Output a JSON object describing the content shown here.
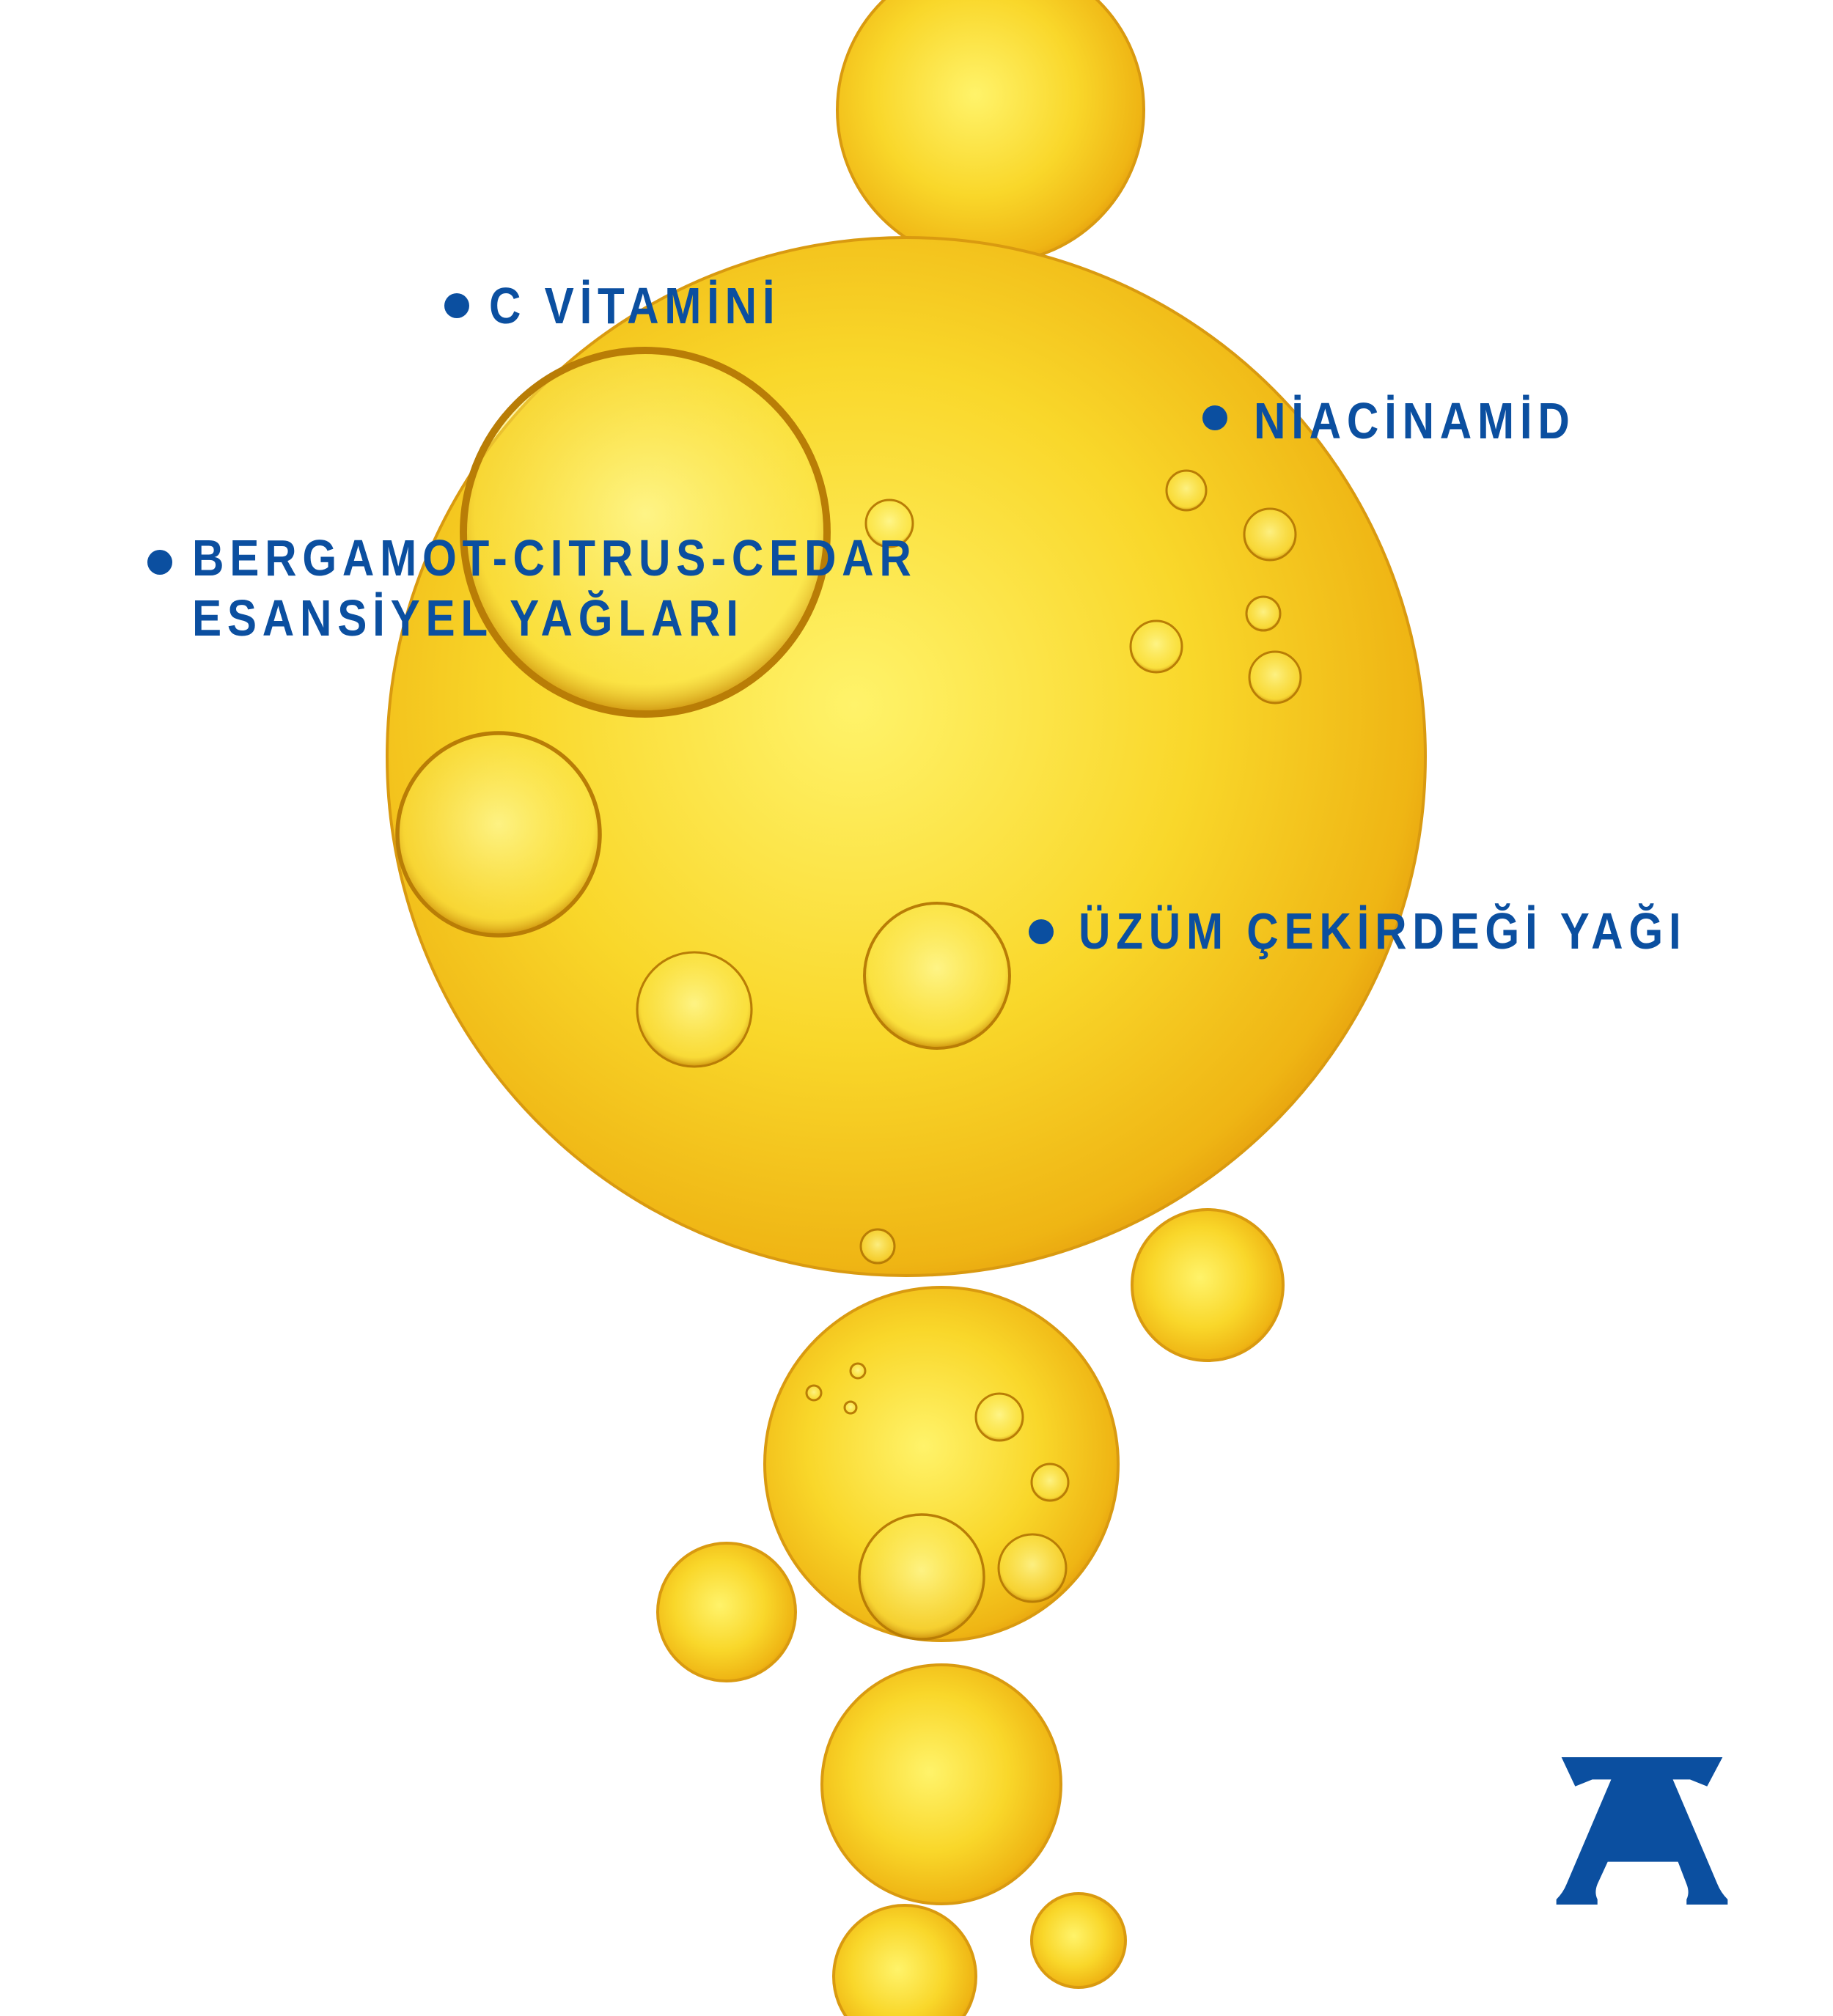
{
  "labels": {
    "vitamin_c": "C VİTAMİNİ",
    "niacinamide": "NİACİNAMİD",
    "essential_oils_line1": "BERGAMOT-CITRUS-CEDAR",
    "essential_oils_line2": "ESANSİYEL YAĞLARI",
    "grape_seed_oil": "ÜZÜM ÇEKİRDEĞİ YAĞI"
  },
  "logo": {
    "letter": "A",
    "name": "brand-monogram"
  },
  "colors": {
    "text": "#0b4fa0",
    "oil_light": "#fff36a",
    "oil_mid": "#f7cf1c",
    "oil_dark": "#e8a30c",
    "background": "#ffffff"
  }
}
